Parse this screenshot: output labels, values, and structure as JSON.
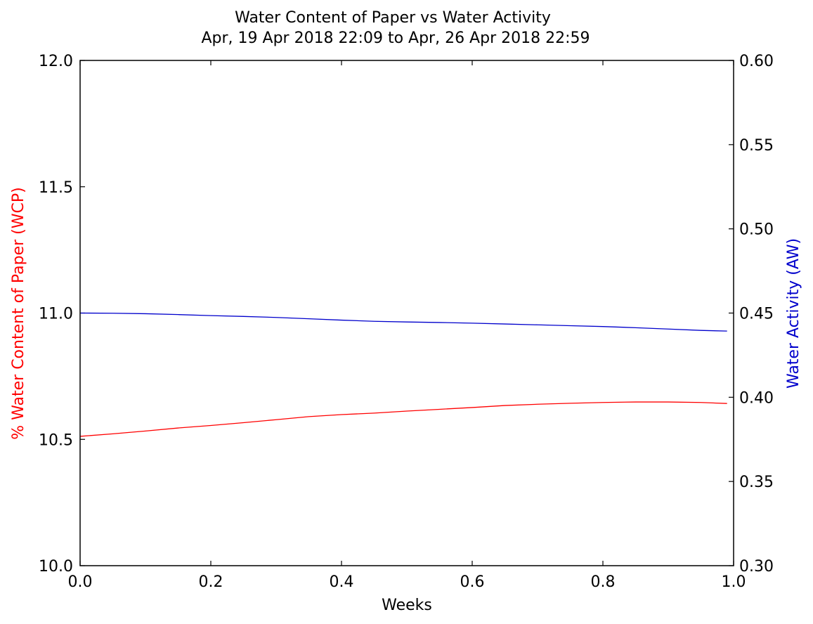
{
  "chart_data": {
    "type": "line",
    "title": "Water Content of Paper vs Water Activity",
    "subtitle": "Apr, 19 Apr 2018 22:09 to Apr, 26 Apr 2018 22:59",
    "xlabel": "Weeks",
    "ylabel_left": "% Water Content of Paper (WCP)",
    "ylabel_right": "Water Activity (AW)",
    "xlim": [
      0.0,
      1.0
    ],
    "ylim_left": [
      10.0,
      12.0
    ],
    "ylim_right": [
      0.3,
      0.6
    ],
    "x_ticks": [
      "0.0",
      "0.2",
      "0.4",
      "0.6",
      "0.8",
      "1.0"
    ],
    "y_left_ticks": [
      "10.0",
      "10.5",
      "11.0",
      "11.5",
      "12.0"
    ],
    "y_right_ticks": [
      "0.30",
      "0.35",
      "0.40",
      "0.45",
      "0.50",
      "0.55",
      "0.60"
    ],
    "grid": false,
    "series": [
      {
        "axis": "left",
        "color": "#ff0000",
        "x": [
          0.0,
          0.05,
          0.1,
          0.15,
          0.2,
          0.25,
          0.3,
          0.35,
          0.4,
          0.45,
          0.5,
          0.55,
          0.6,
          0.65,
          0.7,
          0.75,
          0.8,
          0.85,
          0.9,
          0.95,
          0.99
        ],
        "y": [
          10.512,
          10.522,
          10.533,
          10.545,
          10.555,
          10.566,
          10.578,
          10.59,
          10.598,
          10.604,
          10.612,
          10.619,
          10.626,
          10.634,
          10.639,
          10.643,
          10.646,
          10.648,
          10.648,
          10.646,
          10.642
        ]
      },
      {
        "axis": "right",
        "color": "#0000cc",
        "x": [
          0.0,
          0.05,
          0.1,
          0.15,
          0.2,
          0.25,
          0.3,
          0.35,
          0.4,
          0.45,
          0.5,
          0.55,
          0.6,
          0.65,
          0.7,
          0.75,
          0.8,
          0.85,
          0.9,
          0.95,
          0.99
        ],
        "y": [
          0.45,
          0.4499,
          0.4496,
          0.4491,
          0.4485,
          0.448,
          0.4474,
          0.4466,
          0.4458,
          0.4451,
          0.4447,
          0.4444,
          0.444,
          0.4435,
          0.443,
          0.4425,
          0.442,
          0.4413,
          0.4405,
          0.4397,
          0.4393
        ]
      }
    ]
  }
}
